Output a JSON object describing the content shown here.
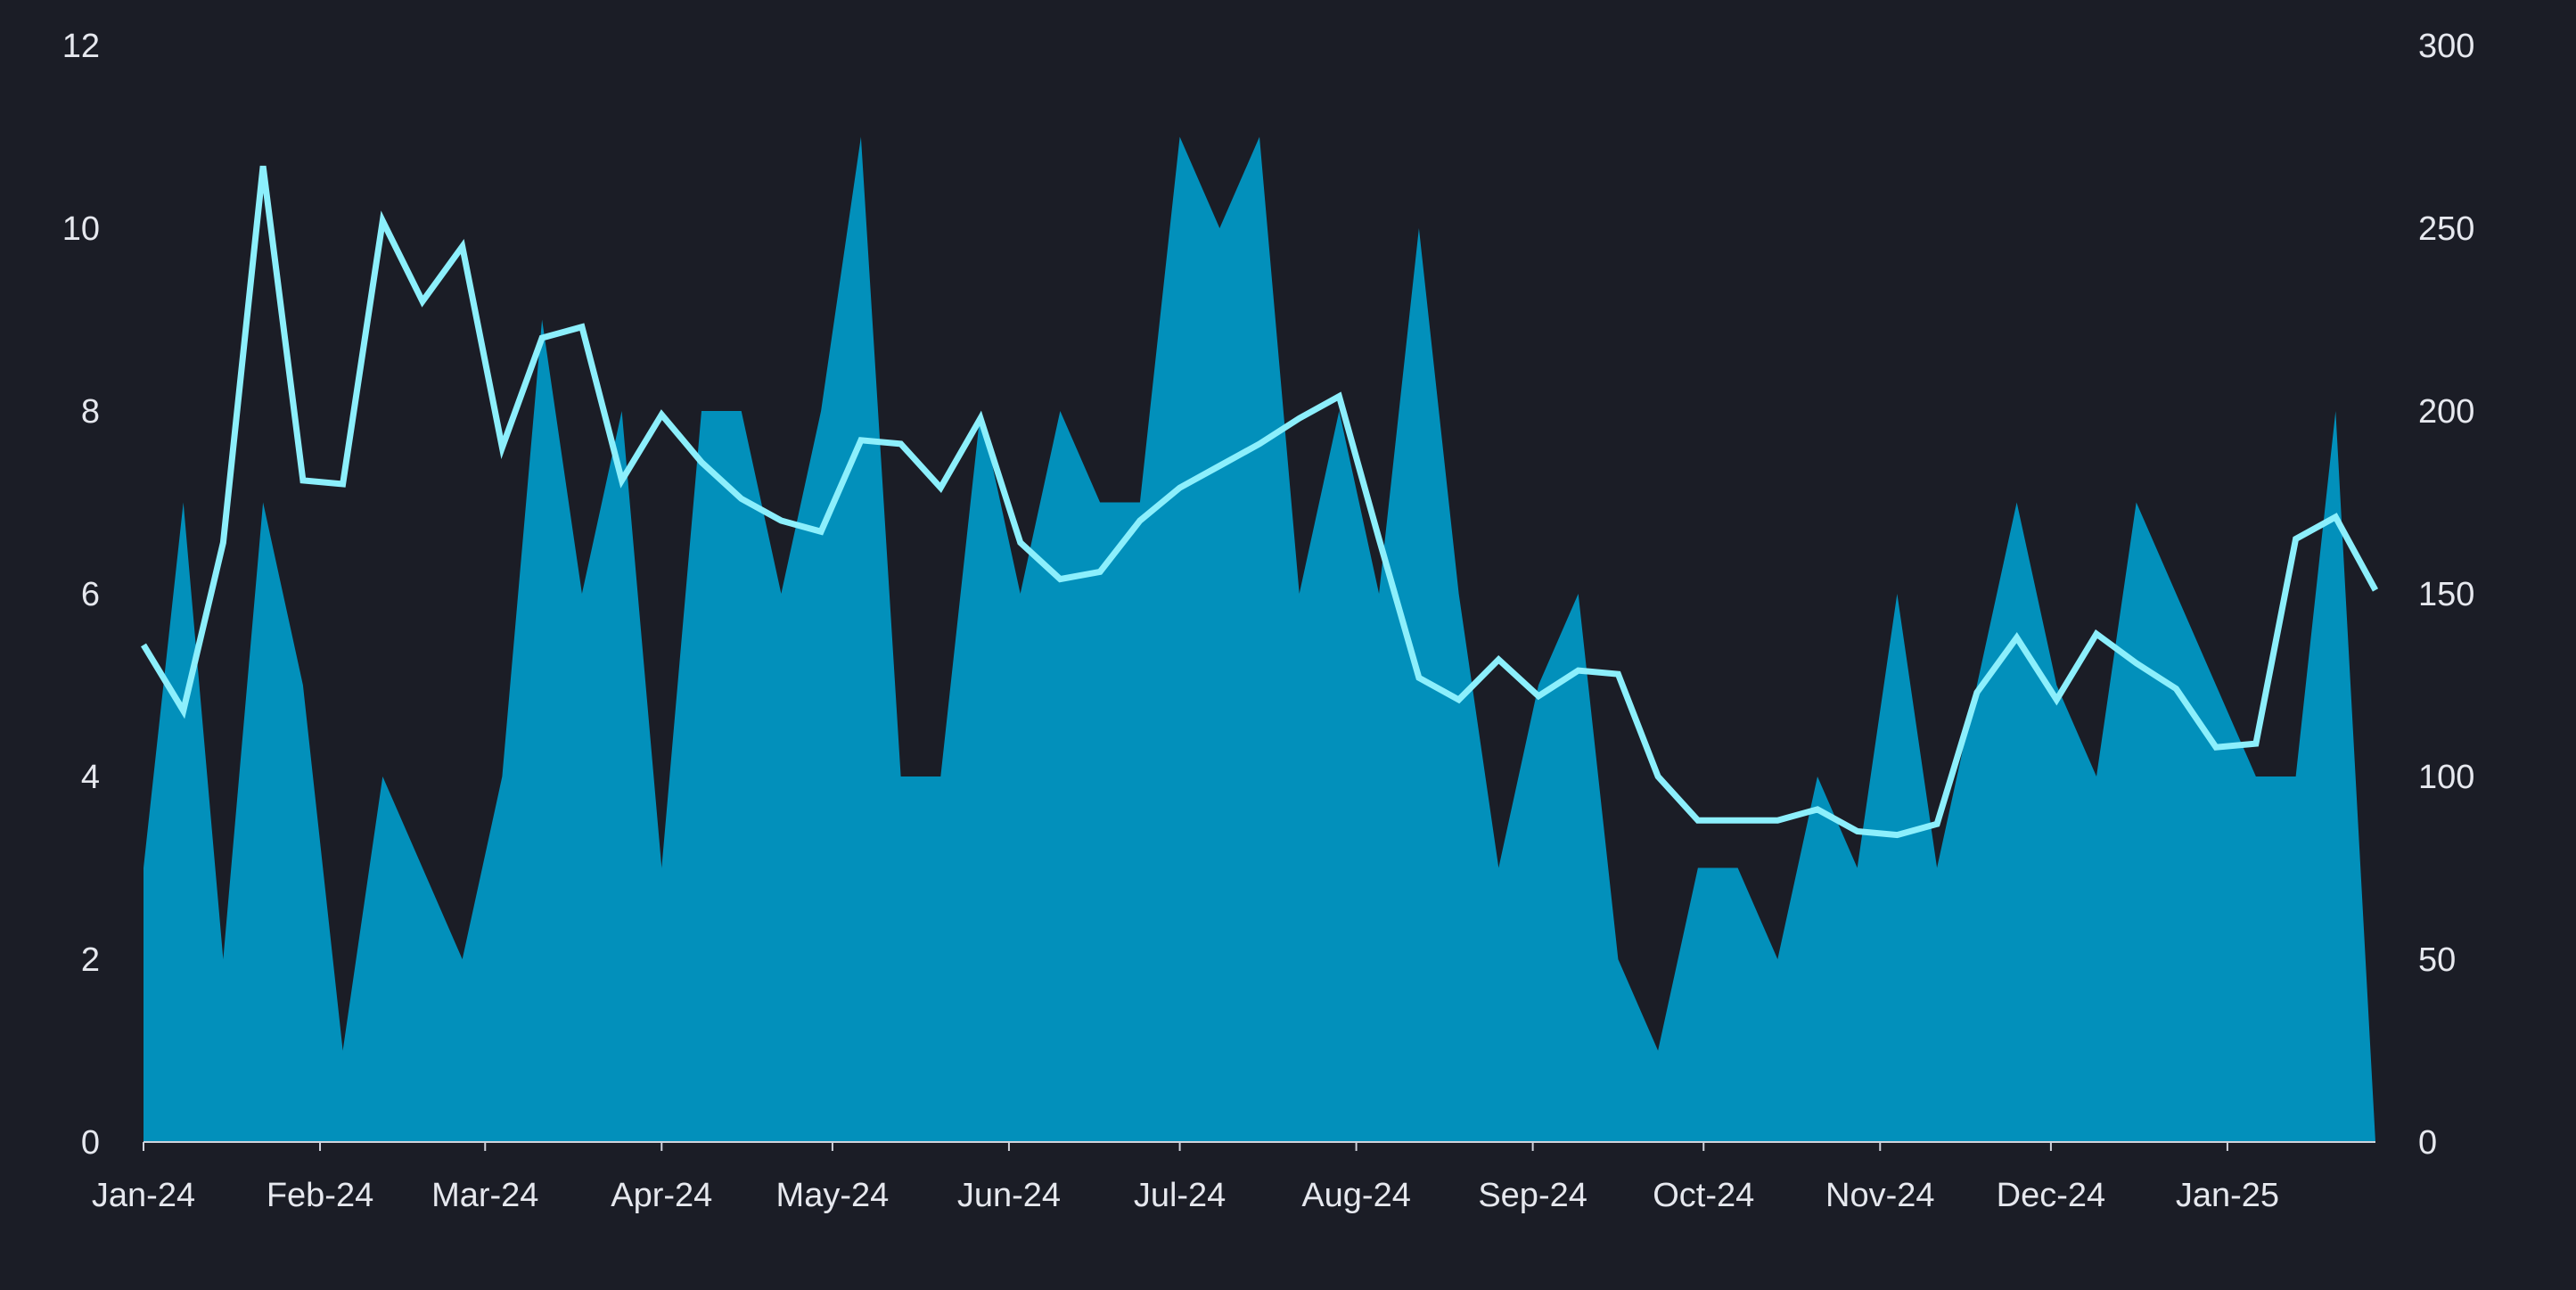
{
  "chart_data": {
    "type": "area",
    "x": [
      "2024-01-01",
      "2024-01-08",
      "2024-01-15",
      "2024-01-22",
      "2024-01-29",
      "2024-02-05",
      "2024-02-12",
      "2024-02-19",
      "2024-02-26",
      "2024-03-04",
      "2024-03-11",
      "2024-03-18",
      "2024-03-25",
      "2024-04-01",
      "2024-04-08",
      "2024-04-15",
      "2024-04-22",
      "2024-04-29",
      "2024-05-06",
      "2024-05-13",
      "2024-05-20",
      "2024-05-27",
      "2024-06-03",
      "2024-06-10",
      "2024-06-17",
      "2024-06-24",
      "2024-07-01",
      "2024-07-08",
      "2024-07-15",
      "2024-07-22",
      "2024-07-29",
      "2024-08-05",
      "2024-08-12",
      "2024-08-19",
      "2024-08-26",
      "2024-09-02",
      "2024-09-09",
      "2024-09-16",
      "2024-09-23",
      "2024-09-30",
      "2024-10-07",
      "2024-10-14",
      "2024-10-21",
      "2024-10-28",
      "2024-11-04",
      "2024-11-11",
      "2024-11-18",
      "2024-11-25",
      "2024-12-02",
      "2024-12-09",
      "2024-12-16",
      "2024-12-23",
      "2024-12-30",
      "2025-01-06",
      "2025-01-13",
      "2025-01-20",
      "2025-01-27"
    ],
    "series": [
      {
        "axis": "left",
        "type": "area",
        "color": "#0290bb",
        "values": [
          3,
          7,
          2,
          7,
          5,
          1,
          4,
          3,
          2,
          4,
          9,
          6,
          8,
          3,
          8,
          8,
          6,
          8,
          11,
          4,
          4,
          8,
          6,
          8,
          7,
          7,
          11,
          10,
          11,
          6,
          8,
          6,
          10,
          6,
          3,
          5,
          6,
          2,
          1,
          3,
          3,
          2,
          4,
          3,
          6,
          3,
          5,
          7,
          5,
          4,
          7,
          6,
          5,
          4,
          4,
          8,
          0
        ]
      },
      {
        "axis": "right",
        "type": "line",
        "color": "#8ceffc",
        "values": [
          136,
          118,
          164,
          267,
          181,
          180,
          252,
          230,
          245,
          190,
          220,
          223,
          181,
          199,
          186,
          176,
          170,
          167,
          192,
          191,
          179,
          198,
          164,
          154,
          156,
          170,
          179,
          185,
          191,
          198,
          204,
          165,
          127,
          121,
          132,
          122,
          129,
          128,
          100,
          88,
          88,
          88,
          91,
          85,
          84,
          87,
          123,
          138,
          121,
          139,
          131,
          124,
          108,
          109,
          165,
          171,
          151
        ]
      }
    ],
    "x_tick_labels": [
      "Jan-24",
      "Feb-24",
      "Mar-24",
      "Apr-24",
      "May-24",
      "Jun-24",
      "Jul-24",
      "Aug-24",
      "Sep-24",
      "Oct-24",
      "Nov-24",
      "Dec-24",
      "Jan-25"
    ],
    "x_tick_dates": [
      "2024-01-01",
      "2024-02-01",
      "2024-03-01",
      "2024-04-01",
      "2024-05-01",
      "2024-06-01",
      "2024-07-01",
      "2024-08-01",
      "2024-09-01",
      "2024-10-01",
      "2024-11-01",
      "2024-12-01",
      "2025-01-01"
    ],
    "y_left": {
      "ticks": [
        "0",
        "2",
        "4",
        "6",
        "8",
        "10",
        "12"
      ],
      "range": [
        0,
        12
      ]
    },
    "y_right": {
      "ticks": [
        "0",
        "50",
        "100",
        "150",
        "200",
        "250",
        "300"
      ],
      "range": [
        0,
        300
      ]
    },
    "title": "",
    "xlabel": "",
    "ylabel": "",
    "grid": false,
    "legend": "none"
  }
}
